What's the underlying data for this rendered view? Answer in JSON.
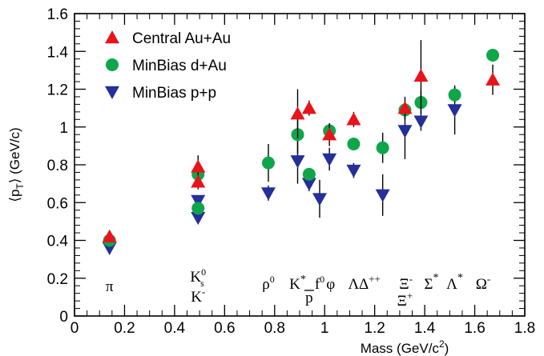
{
  "chart_data": {
    "type": "scatter",
    "xlabel": "Mass (GeV/c²)",
    "ylabel": "⟨p_T⟩ (GeV/c)",
    "xlim": [
      0,
      1.8
    ],
    "ylim": [
      0,
      1.6
    ],
    "x_ticks": [
      "0",
      "0.2",
      "0.4",
      "0.6",
      "0.8",
      "1",
      "1.2",
      "1.4",
      "1.6",
      "1.8"
    ],
    "y_ticks": [
      "0",
      "0.2",
      "0.4",
      "0.6",
      "0.8",
      "1",
      "1.2",
      "1.4",
      "1.6"
    ],
    "grid": false,
    "legend_position": "top-left",
    "series": [
      {
        "name": "Central Au+Au",
        "marker": "triangle-up",
        "color": "#e8141c",
        "points": [
          {
            "x": 0.14,
            "y": 0.42,
            "err": 0.0
          },
          {
            "x": 0.494,
            "y": 0.79,
            "err": 0.06
          },
          {
            "x": 0.494,
            "y": 0.71,
            "err": 0.04
          },
          {
            "x": 0.892,
            "y": 1.07,
            "err": 0.13
          },
          {
            "x": 0.938,
            "y": 1.1,
            "err": 0.04
          },
          {
            "x": 1.019,
            "y": 0.96,
            "err": 0.06
          },
          {
            "x": 1.116,
            "y": 1.04,
            "err": 0.04
          },
          {
            "x": 1.321,
            "y": 1.1,
            "err": 0.06
          },
          {
            "x": 1.385,
            "y": 1.27,
            "err": 0.19
          },
          {
            "x": 1.672,
            "y": 1.25,
            "err": 0.08
          }
        ]
      },
      {
        "name": "MinBias d+Au",
        "marker": "circle",
        "color": "#0fa64b",
        "points": [
          {
            "x": 0.14,
            "y": 0.4,
            "err": 0.0
          },
          {
            "x": 0.494,
            "y": 0.75,
            "err": 0.03
          },
          {
            "x": 0.494,
            "y": 0.57,
            "err": 0.02
          },
          {
            "x": 0.775,
            "y": 0.81,
            "err": 0.1
          },
          {
            "x": 0.892,
            "y": 0.96,
            "err": 0.1
          },
          {
            "x": 0.938,
            "y": 0.75,
            "err": 0.03
          },
          {
            "x": 1.019,
            "y": 0.98,
            "err": 0.04
          },
          {
            "x": 1.116,
            "y": 0.91,
            "err": 0.03
          },
          {
            "x": 1.232,
            "y": 0.89,
            "err": 0.08
          },
          {
            "x": 1.321,
            "y": 1.09,
            "err": 0.05
          },
          {
            "x": 1.385,
            "y": 1.13,
            "err": 0.06
          },
          {
            "x": 1.52,
            "y": 1.17,
            "err": 0.04
          },
          {
            "x": 1.672,
            "y": 1.38,
            "err": 0.03
          }
        ]
      },
      {
        "name": "MinBias p+p",
        "marker": "triangle-down",
        "color": "#242f9a",
        "points": [
          {
            "x": 0.14,
            "y": 0.36,
            "err": 0.0
          },
          {
            "x": 0.494,
            "y": 0.61,
            "err": 0.02
          },
          {
            "x": 0.494,
            "y": 0.52,
            "err": 0.02
          },
          {
            "x": 0.775,
            "y": 0.65,
            "err": 0.04
          },
          {
            "x": 0.892,
            "y": 0.82,
            "err": 0.12
          },
          {
            "x": 0.938,
            "y": 0.7,
            "err": 0.04
          },
          {
            "x": 0.98,
            "y": 0.62,
            "err": 0.1
          },
          {
            "x": 1.019,
            "y": 0.83,
            "err": 0.06
          },
          {
            "x": 1.116,
            "y": 0.77,
            "err": 0.04
          },
          {
            "x": 1.232,
            "y": 0.64,
            "err": 0.11
          },
          {
            "x": 1.321,
            "y": 0.98,
            "err": 0.15
          },
          {
            "x": 1.385,
            "y": 1.03,
            "err": 0.05
          },
          {
            "x": 1.52,
            "y": 1.09,
            "err": 0.13
          }
        ]
      }
    ],
    "particle_labels": [
      {
        "x": 0.14,
        "text": "π"
      },
      {
        "x": 0.494,
        "text": "K⁰ₛ / K⁻"
      },
      {
        "x": 0.775,
        "text": "ρ⁰"
      },
      {
        "x": 0.892,
        "text": "K*"
      },
      {
        "x": 0.938,
        "text": "p̄"
      },
      {
        "x": 0.98,
        "text": "f⁰"
      },
      {
        "x": 1.019,
        "text": "φ"
      },
      {
        "x": 1.116,
        "text": "Λ"
      },
      {
        "x": 1.232,
        "text": "Δ⁺⁺"
      },
      {
        "x": 1.321,
        "text": "Ξ⁻ / Ξ⁺"
      },
      {
        "x": 1.385,
        "text": "Σ*"
      },
      {
        "x": 1.52,
        "text": "Λ*"
      },
      {
        "x": 1.672,
        "text": "Ω⁻"
      }
    ]
  }
}
